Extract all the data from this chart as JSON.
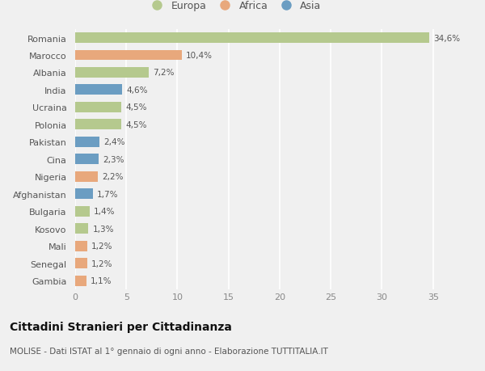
{
  "countries": [
    "Romania",
    "Marocco",
    "Albania",
    "India",
    "Ucraina",
    "Polonia",
    "Pakistan",
    "Cina",
    "Nigeria",
    "Afghanistan",
    "Bulgaria",
    "Kosovo",
    "Mali",
    "Senegal",
    "Gambia"
  ],
  "values": [
    34.6,
    10.4,
    7.2,
    4.6,
    4.5,
    4.5,
    2.4,
    2.3,
    2.2,
    1.7,
    1.4,
    1.3,
    1.2,
    1.2,
    1.1
  ],
  "labels": [
    "34,6%",
    "10,4%",
    "7,2%",
    "4,6%",
    "4,5%",
    "4,5%",
    "2,4%",
    "2,3%",
    "2,2%",
    "1,7%",
    "1,4%",
    "1,3%",
    "1,2%",
    "1,2%",
    "1,1%"
  ],
  "continents": [
    "Europa",
    "Africa",
    "Europa",
    "Asia",
    "Europa",
    "Europa",
    "Asia",
    "Asia",
    "Africa",
    "Asia",
    "Europa",
    "Europa",
    "Africa",
    "Africa",
    "Africa"
  ],
  "colors": {
    "Europa": "#b5c98e",
    "Africa": "#e8a87c",
    "Asia": "#6b9dc2"
  },
  "legend_labels": [
    "Europa",
    "Africa",
    "Asia"
  ],
  "legend_colors": [
    "#b5c98e",
    "#e8a87c",
    "#6b9dc2"
  ],
  "xlim": [
    0,
    37
  ],
  "xticks": [
    0,
    5,
    10,
    15,
    20,
    25,
    30,
    35
  ],
  "title": "Cittadini Stranieri per Cittadinanza",
  "subtitle": "MOLISE - Dati ISTAT al 1° gennaio di ogni anno - Elaborazione TUTTITALIA.IT",
  "bg_color": "#f0f0f0",
  "plot_bg_color": "#f0f0f0",
  "grid_color": "#ffffff",
  "bar_height": 0.6,
  "label_fontsize": 7.5,
  "ytick_fontsize": 8,
  "xtick_fontsize": 8
}
